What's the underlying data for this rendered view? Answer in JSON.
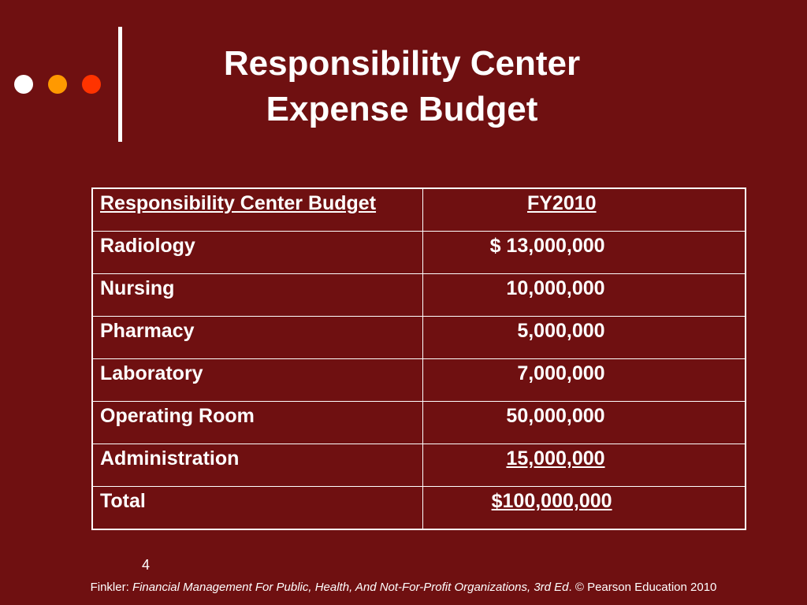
{
  "title": {
    "line1": "Responsibility Center",
    "line2": "Expense Budget"
  },
  "table": {
    "header": {
      "label": "Responsibility Center Budget",
      "period": "FY2010"
    },
    "rows": [
      {
        "label": "Radiology",
        "amount": "$ 13,000,000"
      },
      {
        "label": "Nursing",
        "amount": "10,000,000"
      },
      {
        "label": "Pharmacy",
        "amount": "5,000,000"
      },
      {
        "label": "Laboratory",
        "amount": "7,000,000"
      },
      {
        "label": "Operating Room",
        "amount": "50,000,000"
      },
      {
        "label": "Administration",
        "amount": "15,000,000"
      }
    ],
    "total": {
      "label": "Total",
      "amount": "$100,000,000"
    }
  },
  "page_number": "4",
  "footer": {
    "author": "Finkler: ",
    "book": "Financial Management For Public, Health, And Not-For-Profit Organizations, 3rd Ed",
    "publisher": ". © Pearson Education 2010"
  },
  "colors": {
    "background": "#6f1011",
    "dot1": "#ffffff",
    "dot2": "#ff9900",
    "dot3": "#ff3300"
  }
}
